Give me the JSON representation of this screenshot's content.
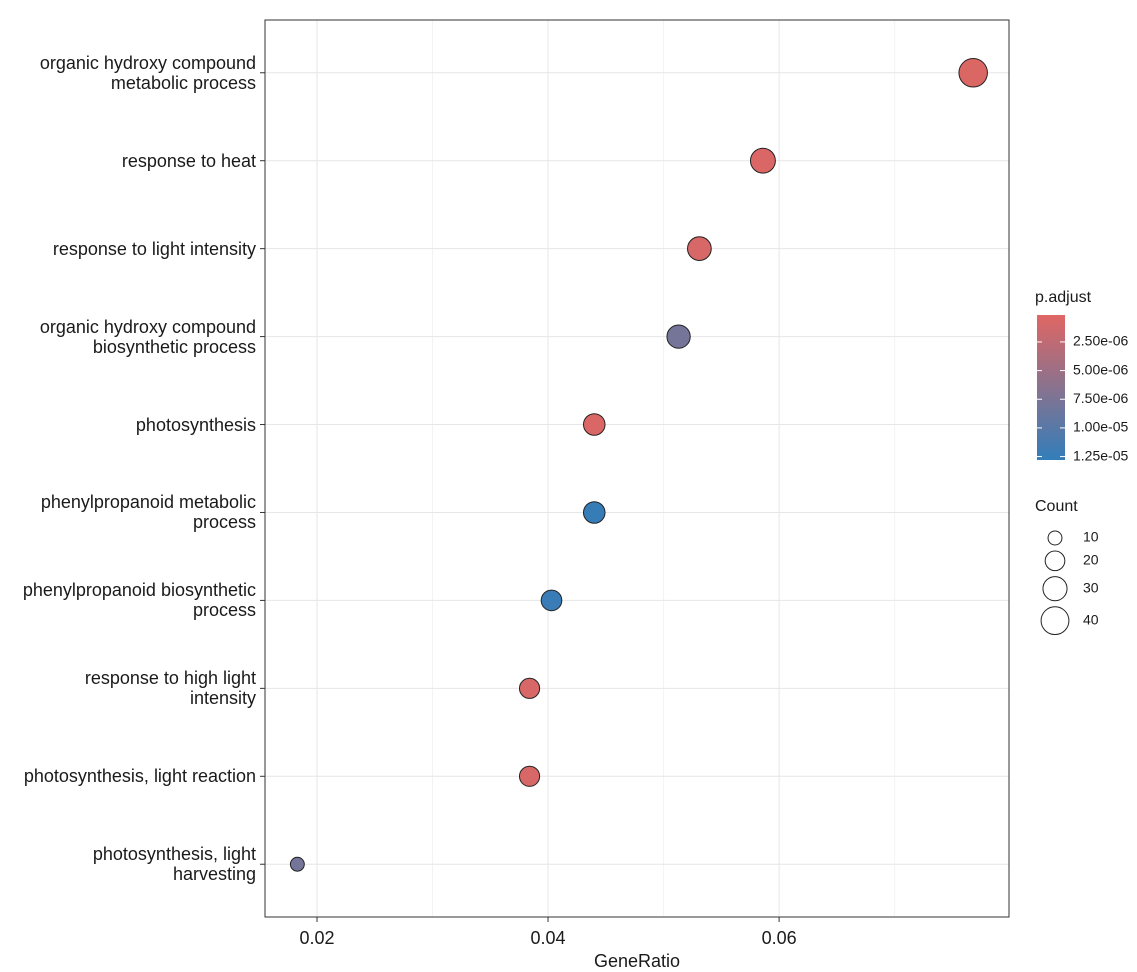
{
  "chart_data": {
    "type": "dotplot",
    "x_label": "GeneRatio",
    "categories": [
      "organic hydroxy compound\nmetabolic process",
      "response to heat",
      "response to light intensity",
      "organic hydroxy compound\nbiosynthetic process",
      "photosynthesis",
      "phenylpropanoid metabolic\nprocess",
      "phenylpropanoid biosynthetic\nprocess",
      "response to high light\nintensity",
      "photosynthesis, light reaction",
      "photosynthesis, light\nharvesting"
    ],
    "x": [
      0.0768,
      0.0586,
      0.0531,
      0.0513,
      0.044,
      0.044,
      0.0403,
      0.0384,
      0.0384,
      0.0183
    ],
    "counts": [
      42,
      32,
      29,
      28,
      24,
      24,
      22,
      21,
      21,
      10
    ],
    "p_adjust": [
      5e-07,
      6e-07,
      7e-07,
      8e-06,
      6e-07,
      1.25e-05,
      1.22e-05,
      7e-07,
      7e-07,
      8e-06
    ],
    "xlim": [
      0.0155,
      0.0799
    ],
    "xticks": [
      0.02,
      0.04,
      0.06
    ],
    "x_minor_ticks": [
      0.03,
      0.05,
      0.07
    ],
    "grid": true,
    "color_legend": {
      "title": "p.adjust",
      "low": "#e06663",
      "high": "#327eba",
      "lim": [
        1.5e-07,
        1.28e-05
      ],
      "ticks": [
        {
          "value": 2.5e-06,
          "label": "2.50e-06"
        },
        {
          "value": 5e-06,
          "label": "5.00e-06"
        },
        {
          "value": 7.5e-06,
          "label": "7.50e-06"
        },
        {
          "value": 1e-05,
          "label": "1.00e-05"
        },
        {
          "value": 1.25e-05,
          "label": "1.25e-05"
        }
      ]
    },
    "size_legend": {
      "title": "Count",
      "values": [
        10,
        20,
        30,
        40
      ]
    }
  }
}
